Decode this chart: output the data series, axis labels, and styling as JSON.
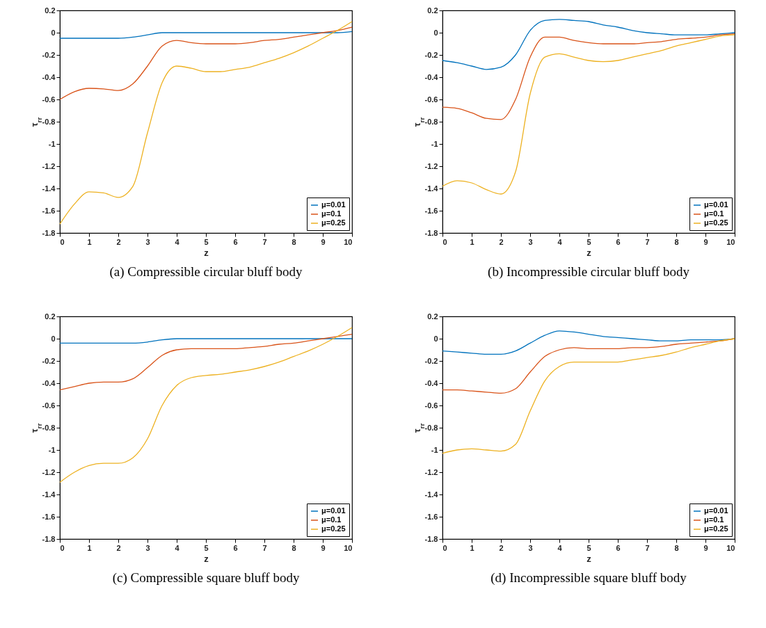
{
  "chart_data": [
    {
      "type": "line",
      "title": "(a) Compressible circular bluff body",
      "xlabel": "z",
      "ylabel": "τ$_{rr}$",
      "x": [
        0,
        0.5,
        1,
        1.5,
        2,
        2.5,
        3,
        3.5,
        4,
        4.5,
        5,
        5.5,
        6,
        6.5,
        7,
        7.5,
        8,
        8.5,
        9,
        9.5,
        10
      ],
      "xlim": [
        0,
        10
      ],
      "xticks": [
        0,
        1,
        2,
        3,
        4,
        5,
        6,
        7,
        8,
        9,
        10
      ],
      "ylim": [
        -1.8,
        0.2
      ],
      "yticks": [
        -1.8,
        -1.6,
        -1.4,
        -1.2,
        -1,
        -0.8,
        -0.6,
        -0.4,
        -0.2,
        0,
        0.2
      ],
      "grid": false,
      "legend": "bottom right",
      "series": [
        {
          "name": "μ=0.01",
          "color": "#0072bd",
          "values": [
            -0.05,
            -0.05,
            -0.05,
            -0.05,
            -0.05,
            -0.04,
            -0.02,
            0,
            0,
            0,
            0,
            0,
            0,
            0,
            0,
            0,
            0,
            0,
            0,
            0,
            0.01
          ]
        },
        {
          "name": "μ=0.1",
          "color": "#d95319",
          "values": [
            -0.6,
            -0.53,
            -0.5,
            -0.505,
            -0.52,
            -0.46,
            -0.3,
            -0.12,
            -0.07,
            -0.09,
            -0.1,
            -0.1,
            -0.1,
            -0.09,
            -0.07,
            -0.06,
            -0.04,
            -0.02,
            0,
            0.02,
            0.05
          ]
        },
        {
          "name": "μ=0.25",
          "color": "#edb120",
          "values": [
            -1.72,
            -1.54,
            -1.43,
            -1.44,
            -1.48,
            -1.38,
            -0.9,
            -0.45,
            -0.3,
            -0.32,
            -0.35,
            -0.35,
            -0.33,
            -0.31,
            -0.27,
            -0.23,
            -0.18,
            -0.12,
            -0.05,
            0.02,
            0.1
          ]
        }
      ]
    },
    {
      "type": "line",
      "title": "(b) Incompressible circular bluff body",
      "xlabel": "z",
      "ylabel": "τ$_{rr}$",
      "x": [
        0,
        0.5,
        1,
        1.5,
        2,
        2.5,
        3,
        3.5,
        4,
        4.5,
        5,
        5.5,
        6,
        6.5,
        7,
        7.5,
        8,
        8.5,
        9,
        9.5,
        10
      ],
      "xlim": [
        0,
        10
      ],
      "xticks": [
        0,
        1,
        2,
        3,
        4,
        5,
        6,
        7,
        8,
        9,
        10
      ],
      "ylim": [
        -1.8,
        0.2
      ],
      "yticks": [
        -1.8,
        -1.6,
        -1.4,
        -1.2,
        -1,
        -0.8,
        -0.6,
        -0.4,
        -0.2,
        0,
        0.2
      ],
      "grid": false,
      "legend": "bottom right",
      "series": [
        {
          "name": "μ=0.01",
          "color": "#0072bd",
          "values": [
            -0.25,
            -0.27,
            -0.3,
            -0.33,
            -0.31,
            -0.2,
            0.02,
            0.11,
            0.12,
            0.11,
            0.1,
            0.07,
            0.05,
            0.02,
            0,
            -0.01,
            -0.02,
            -0.02,
            -0.02,
            -0.01,
            0
          ]
        },
        {
          "name": "μ=0.1",
          "color": "#d95319",
          "values": [
            -0.67,
            -0.68,
            -0.72,
            -0.77,
            -0.78,
            -0.6,
            -0.22,
            -0.04,
            -0.04,
            -0.07,
            -0.09,
            -0.1,
            -0.1,
            -0.1,
            -0.09,
            -0.08,
            -0.06,
            -0.05,
            -0.04,
            -0.02,
            -0.01
          ]
        },
        {
          "name": "μ=0.25",
          "color": "#edb120",
          "values": [
            -1.38,
            -1.33,
            -1.35,
            -1.41,
            -1.45,
            -1.25,
            -0.55,
            -0.22,
            -0.19,
            -0.22,
            -0.25,
            -0.26,
            -0.25,
            -0.22,
            -0.19,
            -0.16,
            -0.12,
            -0.09,
            -0.06,
            -0.03,
            -0.02
          ]
        }
      ]
    },
    {
      "type": "line",
      "title": "(c) Compressible square bluff body",
      "xlabel": "z",
      "ylabel": "τ$_{rr}$",
      "x": [
        0,
        0.5,
        1,
        1.5,
        2,
        2.5,
        3,
        3.5,
        4,
        4.5,
        5,
        5.5,
        6,
        6.5,
        7,
        7.5,
        8,
        8.5,
        9,
        9.5,
        10
      ],
      "xlim": [
        0,
        10
      ],
      "xticks": [
        0,
        1,
        2,
        3,
        4,
        5,
        6,
        7,
        8,
        9,
        10
      ],
      "ylim": [
        -1.8,
        0.2
      ],
      "yticks": [
        -1.8,
        -1.6,
        -1.4,
        -1.2,
        -1,
        -0.8,
        -0.6,
        -0.4,
        -0.2,
        0,
        0.2
      ],
      "grid": false,
      "legend": "bottom right",
      "series": [
        {
          "name": "μ=0.01",
          "color": "#0072bd",
          "values": [
            -0.04,
            -0.04,
            -0.04,
            -0.04,
            -0.04,
            -0.04,
            -0.03,
            -0.01,
            0,
            0,
            0,
            0,
            0,
            0,
            0,
            0,
            0,
            0,
            0,
            0,
            0
          ]
        },
        {
          "name": "μ=0.1",
          "color": "#d95319",
          "values": [
            -0.46,
            -0.43,
            -0.4,
            -0.39,
            -0.39,
            -0.36,
            -0.26,
            -0.15,
            -0.1,
            -0.09,
            -0.09,
            -0.09,
            -0.09,
            -0.08,
            -0.07,
            -0.05,
            -0.04,
            -0.02,
            0,
            0.02,
            0.04
          ]
        },
        {
          "name": "μ=0.25",
          "color": "#edb120",
          "values": [
            -1.29,
            -1.2,
            -1.14,
            -1.12,
            -1.12,
            -1.07,
            -0.9,
            -0.6,
            -0.42,
            -0.35,
            -0.33,
            -0.32,
            -0.3,
            -0.28,
            -0.25,
            -0.21,
            -0.16,
            -0.11,
            -0.05,
            0.02,
            0.1
          ]
        }
      ]
    },
    {
      "type": "line",
      "title": "(d) Incompressible square bluff body",
      "xlabel": "z",
      "ylabel": "τ$_{rr}$",
      "x": [
        0,
        0.5,
        1,
        1.5,
        2,
        2.5,
        3,
        3.5,
        4,
        4.5,
        5,
        5.5,
        6,
        6.5,
        7,
        7.5,
        8,
        8.5,
        9,
        9.5,
        10
      ],
      "xlim": [
        0,
        10
      ],
      "xticks": [
        0,
        1,
        2,
        3,
        4,
        5,
        6,
        7,
        8,
        9,
        10
      ],
      "ylim": [
        -1.8,
        0.2
      ],
      "yticks": [
        -1.8,
        -1.6,
        -1.4,
        -1.2,
        -1,
        -0.8,
        -0.6,
        -0.4,
        -0.2,
        0,
        0.2
      ],
      "grid": false,
      "legend": "bottom right",
      "series": [
        {
          "name": "μ=0.01",
          "color": "#0072bd",
          "values": [
            -0.11,
            -0.12,
            -0.13,
            -0.14,
            -0.14,
            -0.11,
            -0.04,
            0.03,
            0.07,
            0.06,
            0.04,
            0.02,
            0.01,
            0,
            -0.01,
            -0.02,
            -0.02,
            -0.01,
            -0.01,
            -0.01,
            0
          ]
        },
        {
          "name": "μ=0.1",
          "color": "#d95319",
          "values": [
            -0.46,
            -0.46,
            -0.47,
            -0.48,
            -0.49,
            -0.45,
            -0.3,
            -0.16,
            -0.1,
            -0.08,
            -0.09,
            -0.09,
            -0.09,
            -0.08,
            -0.08,
            -0.07,
            -0.05,
            -0.04,
            -0.03,
            -0.02,
            0
          ]
        },
        {
          "name": "μ=0.25",
          "color": "#edb120",
          "values": [
            -1.03,
            -1,
            -0.99,
            -1,
            -1.01,
            -0.95,
            -0.65,
            -0.38,
            -0.25,
            -0.21,
            -0.21,
            -0.21,
            -0.21,
            -0.19,
            -0.17,
            -0.15,
            -0.12,
            -0.08,
            -0.05,
            -0.02,
            0
          ]
        }
      ]
    }
  ]
}
